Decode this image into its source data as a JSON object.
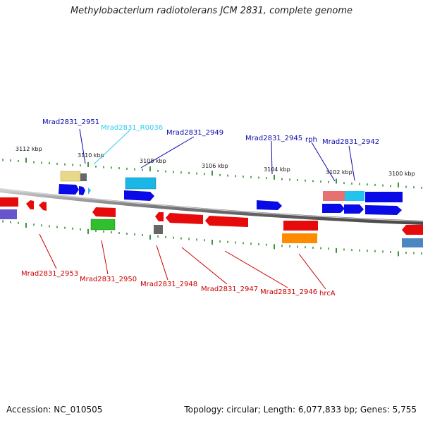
{
  "title": "Methylobacterium radiotolerans JCM 2831, complete genome",
  "footer": {
    "accession": "Accession: NC_010505",
    "summary": "Topology: circular; Length: 6,077,833 bp; Genes: 5,755"
  },
  "colors": {
    "backbone": "#8c8c8c",
    "tick": "#0b7a0b",
    "label_forward": "#0a0aa8",
    "label_reverse": "#cc0000",
    "label_rna": "#33ccee"
  },
  "scale_labels": [
    "3112 kbp",
    "3110 kbp",
    "3108 kbp",
    "3106 kbp",
    "3104 kbp",
    "3102 kbp",
    "3100 kbp"
  ],
  "gene_labels_top": [
    {
      "text": "Mrad2831_2951",
      "color": "#0a0aa8"
    },
    {
      "text": "Mrad2831_R0036",
      "color": "#33ccee"
    },
    {
      "text": "Mrad2831_2949",
      "color": "#0a0aa8"
    },
    {
      "text": "Mrad2831_2945",
      "color": "#0a0aa8"
    },
    {
      "text": "rph",
      "color": "#0a0aa8"
    },
    {
      "text": "Mrad2831_2942",
      "color": "#0a0aa8"
    }
  ],
  "gene_labels_bottom": [
    {
      "text": "Mrad2831_2953",
      "color": "#cc0000"
    },
    {
      "text": "Mrad2831_2950",
      "color": "#cc0000"
    },
    {
      "text": "Mrad2831_2948",
      "color": "#cc0000"
    },
    {
      "text": "Mrad2831_2947",
      "color": "#cc0000"
    },
    {
      "text": "Mrad2831_2946",
      "color": "#cc0000"
    },
    {
      "text": "hrcA",
      "color": "#cc0000"
    }
  ]
}
